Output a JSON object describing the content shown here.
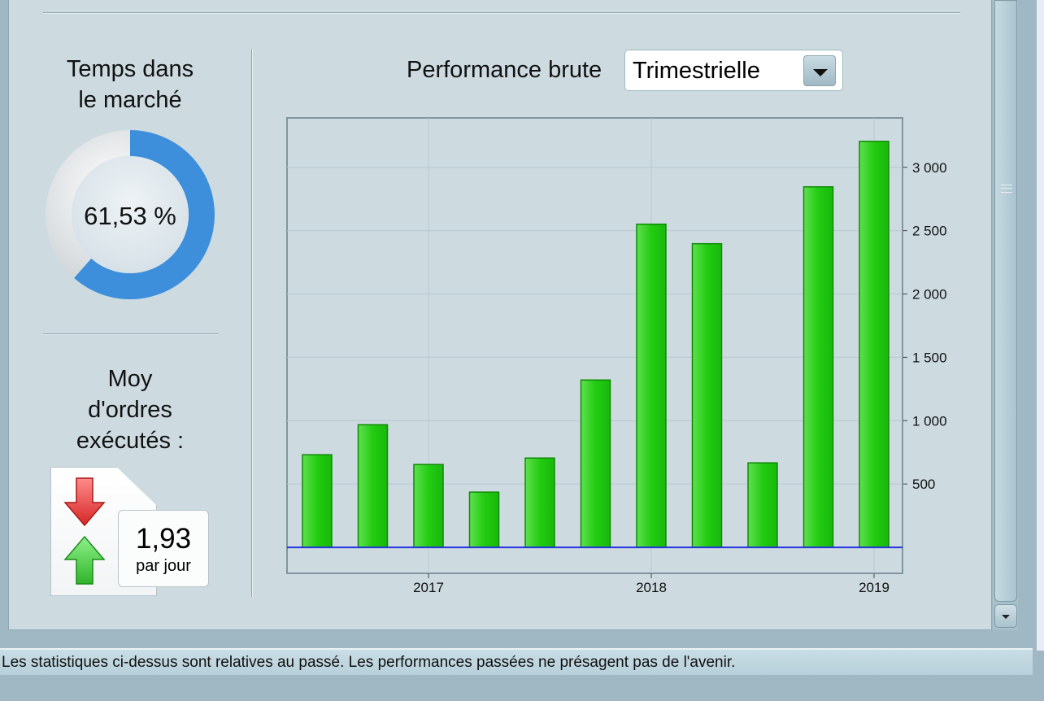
{
  "time_in_market": {
    "title_line1": "Temps dans",
    "title_line2": "le marché",
    "value": "61,53 %",
    "fraction": 0.6153,
    "color": "#3d8fdc"
  },
  "orders": {
    "title_line1": "Moy",
    "title_line2": "d'ordres",
    "title_line3": "exécutés :",
    "value": "1,93",
    "unit": "par jour"
  },
  "performance": {
    "label": "Performance brute",
    "period_selected": "Trimestrielle"
  },
  "status_text": "Les statistiques ci-dessus sont relatives au passé. Les performances passées ne présagent pas de l'avenir.",
  "chart_data": {
    "type": "bar",
    "values": [
      731,
      968,
      654,
      436,
      705,
      1321,
      2551,
      2397,
      667,
      2846,
      3205
    ],
    "x_ticks": [
      "2017",
      "2018",
      "2019"
    ],
    "x_tick_bar_index": [
      2,
      6,
      10
    ],
    "y_ticks": [
      500,
      1000,
      1500,
      2000,
      2500,
      3000
    ],
    "y_tick_labels": [
      "500",
      "1 000",
      "1 500",
      "2 000",
      "2 500",
      "3 000"
    ],
    "ylim": [
      -205,
      3390
    ],
    "grid": true,
    "y_axis_side": "right",
    "bar_color": "#22cc11",
    "zero_line_color": "#2233dd"
  }
}
